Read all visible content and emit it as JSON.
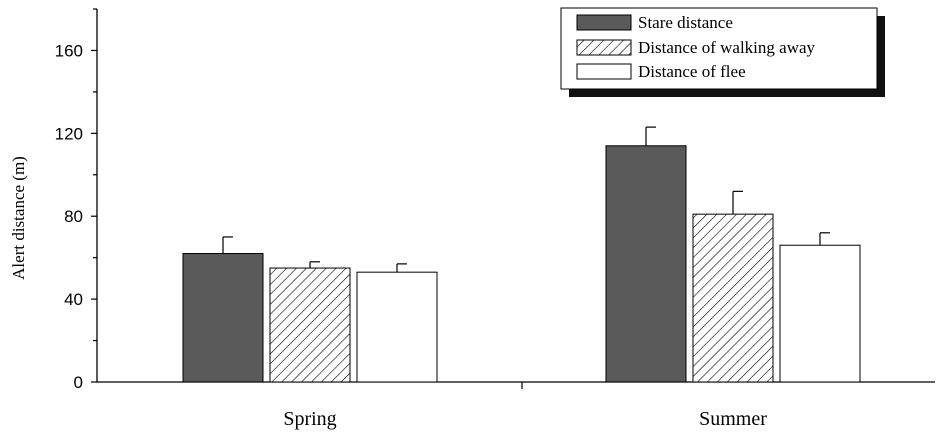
{
  "chart_data": {
    "type": "bar",
    "ylabel": "Alert distance (m)",
    "xlabel": "",
    "ylim": [
      0,
      180
    ],
    "yticks": [
      0,
      40,
      80,
      120,
      160
    ],
    "categories": [
      "Spring",
      "Summer"
    ],
    "legend_position": "top-right",
    "series": [
      {
        "name": "Stare distance",
        "values": [
          62,
          114
        ],
        "errors": [
          8,
          9
        ],
        "fill": "#5a5a5a",
        "pattern": "solid"
      },
      {
        "name": "Distance of walking away",
        "values": [
          55,
          81
        ],
        "errors": [
          3,
          11
        ],
        "fill": "#ffffff",
        "pattern": "hatch"
      },
      {
        "name": "Distance of flee",
        "values": [
          53,
          66
        ],
        "errors": [
          4,
          6
        ],
        "fill": "#ffffff",
        "pattern": "none"
      }
    ]
  }
}
